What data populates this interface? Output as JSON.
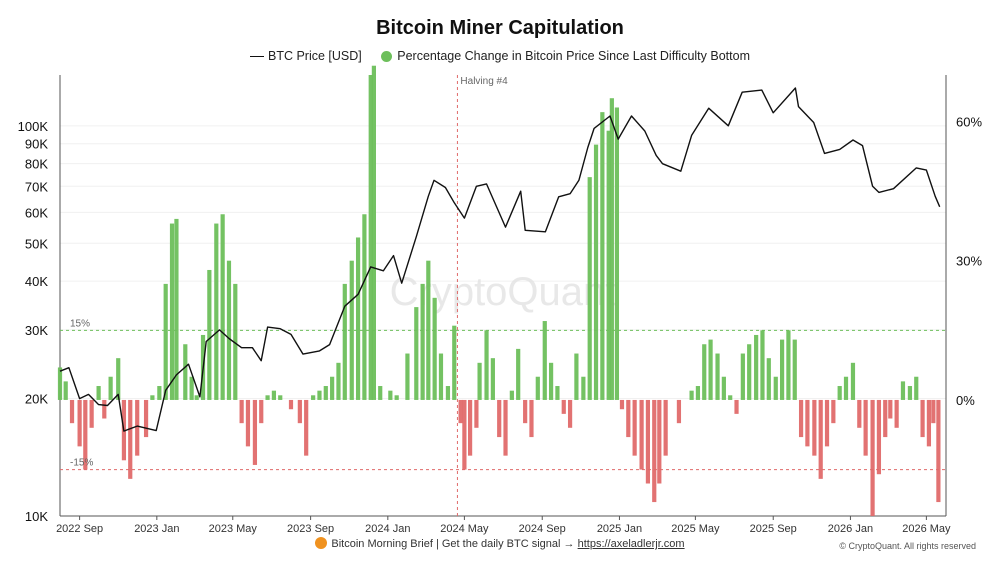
{
  "title": "Bitcoin Miner Capitulation",
  "legend": {
    "price_label": "BTC Price [USD]",
    "pct_label": "Percentage Change in Bitcoin Price Since Last Difficulty Bottom"
  },
  "watermark": "CryptoQuant",
  "footer": {
    "text": "Bitcoin Morning Brief | Get the daily BTC signal →",
    "link": "https://axeladlerjr.com",
    "copyright": "© CryptoQuant. All rights reserved"
  },
  "colors": {
    "price_line": "#111111",
    "positive": "#6dbf5b",
    "negative": "#e06a6a",
    "halving_line": "#e06a6a",
    "threshold_plus": "#6dbf5b",
    "threshold_minus": "#e06a6a"
  },
  "chart_data": {
    "type": "line",
    "x_range": [
      "2022-08-01",
      "2026-06-01"
    ],
    "x_tick_labels": [
      "2022 Sep",
      "2023 Jan",
      "2023 May",
      "2023 Sep",
      "2024 Jan",
      "2024 May",
      "2024 Sep",
      "2025 Jan",
      "2025 May",
      "2025 Sep",
      "2026 Jan",
      "2026 May"
    ],
    "x_tick_dates": [
      "2022-09-01",
      "2023-01-01",
      "2023-05-01",
      "2023-09-01",
      "2024-01-01",
      "2024-05-01",
      "2024-09-01",
      "2025-01-01",
      "2025-05-01",
      "2025-09-01",
      "2026-01-01",
      "2026-05-01"
    ],
    "left_axis": {
      "scale": "log",
      "range": [
        10000,
        135000
      ],
      "ticks": [
        10000,
        20000,
        30000,
        40000,
        50000,
        60000,
        70000,
        80000,
        90000,
        100000
      ],
      "tick_labels": [
        "10K",
        "20K",
        "30K",
        "40K",
        "50K",
        "60K",
        "70K",
        "80K",
        "90K",
        "100K"
      ]
    },
    "right_axis": {
      "scale": "linear",
      "range": [
        -25,
        70
      ],
      "ticks": [
        0,
        30,
        60
      ],
      "tick_labels": [
        "0%",
        "30%",
        "60%"
      ]
    },
    "thresholds": [
      {
        "value": 15,
        "label": "15%"
      },
      {
        "value": -15,
        "label": "-15%"
      }
    ],
    "annotations": [
      {
        "date": "2024-04-20",
        "label": "Halving #4"
      }
    ],
    "series": [
      {
        "name": "BTC Price [USD]",
        "axis": "left",
        "points": [
          [
            "2022-08-01",
            23500
          ],
          [
            "2022-08-15",
            24000
          ],
          [
            "2022-09-01",
            20000
          ],
          [
            "2022-09-15",
            20500
          ],
          [
            "2022-10-01",
            19300
          ],
          [
            "2022-10-15",
            19200
          ],
          [
            "2022-11-01",
            20500
          ],
          [
            "2022-11-10",
            16500
          ],
          [
            "2022-12-01",
            17000
          ],
          [
            "2022-12-31",
            16550
          ],
          [
            "2023-01-15",
            21000
          ],
          [
            "2023-02-01",
            23000
          ],
          [
            "2023-02-20",
            24500
          ],
          [
            "2023-03-10",
            20200
          ],
          [
            "2023-03-20",
            28000
          ],
          [
            "2023-04-10",
            30000
          ],
          [
            "2023-04-25",
            28500
          ],
          [
            "2023-05-15",
            27000
          ],
          [
            "2023-06-01",
            27000
          ],
          [
            "2023-06-15",
            25000
          ],
          [
            "2023-06-25",
            30500
          ],
          [
            "2023-07-15",
            30200
          ],
          [
            "2023-08-01",
            29200
          ],
          [
            "2023-08-20",
            26000
          ],
          [
            "2023-09-15",
            26500
          ],
          [
            "2023-10-01",
            27500
          ],
          [
            "2023-10-25",
            34500
          ],
          [
            "2023-11-15",
            37000
          ],
          [
            "2023-12-05",
            43500
          ],
          [
            "2023-12-25",
            42500
          ],
          [
            "2024-01-10",
            46500
          ],
          [
            "2024-01-23",
            39500
          ],
          [
            "2024-02-15",
            52000
          ],
          [
            "2024-03-05",
            66000
          ],
          [
            "2024-03-14",
            72500
          ],
          [
            "2024-04-01",
            69500
          ],
          [
            "2024-04-15",
            63500
          ],
          [
            "2024-05-01",
            58000
          ],
          [
            "2024-05-20",
            70000
          ],
          [
            "2024-06-05",
            71000
          ],
          [
            "2024-07-05",
            55000
          ],
          [
            "2024-07-29",
            68000
          ],
          [
            "2024-08-05",
            54000
          ],
          [
            "2024-09-06",
            53500
          ],
          [
            "2024-09-27",
            65800
          ],
          [
            "2024-10-15",
            67000
          ],
          [
            "2024-10-29",
            72500
          ],
          [
            "2024-11-12",
            88000
          ],
          [
            "2024-11-22",
            98500
          ],
          [
            "2024-12-17",
            106000
          ],
          [
            "2024-12-30",
            92500
          ],
          [
            "2025-01-20",
            106000
          ],
          [
            "2025-02-10",
            97000
          ],
          [
            "2025-02-28",
            84000
          ],
          [
            "2025-03-10",
            80000
          ],
          [
            "2025-04-08",
            76500
          ],
          [
            "2025-04-25",
            94500
          ],
          [
            "2025-05-22",
            111000
          ],
          [
            "2025-06-22",
            100000
          ],
          [
            "2025-07-14",
            122000
          ],
          [
            "2025-08-14",
            123500
          ],
          [
            "2025-09-01",
            108000
          ],
          [
            "2025-10-06",
            125000
          ],
          [
            "2025-10-11",
            112000
          ],
          [
            "2025-11-04",
            102000
          ],
          [
            "2025-11-21",
            85000
          ],
          [
            "2025-12-15",
            87000
          ],
          [
            "2026-01-05",
            92000
          ],
          [
            "2026-01-20",
            89000
          ],
          [
            "2026-02-05",
            70000
          ],
          [
            "2026-02-15",
            67500
          ],
          [
            "2026-03-10",
            69000
          ],
          [
            "2026-04-15",
            78000
          ],
          [
            "2026-05-01",
            77000
          ],
          [
            "2026-05-15",
            66000
          ],
          [
            "2026-05-22",
            62000
          ]
        ]
      },
      {
        "name": "Percentage Change in Bitcoin Price Since Last Difficulty Bottom",
        "axis": "right",
        "type": "bar",
        "points": [
          [
            "2022-08-01",
            7
          ],
          [
            "2022-08-10",
            4
          ],
          [
            "2022-08-20",
            -5
          ],
          [
            "2022-09-01",
            -10
          ],
          [
            "2022-09-10",
            -15
          ],
          [
            "2022-09-20",
            -6
          ],
          [
            "2022-10-01",
            3
          ],
          [
            "2022-10-10",
            -4
          ],
          [
            "2022-10-20",
            5
          ],
          [
            "2022-11-01",
            9
          ],
          [
            "2022-11-10",
            -13
          ],
          [
            "2022-11-20",
            -17
          ],
          [
            "2022-12-01",
            -12
          ],
          [
            "2022-12-15",
            -8
          ],
          [
            "2022-12-25",
            1
          ],
          [
            "2023-01-05",
            3
          ],
          [
            "2023-01-15",
            25
          ],
          [
            "2023-01-25",
            38
          ],
          [
            "2023-02-01",
            39
          ],
          [
            "2023-02-15",
            12
          ],
          [
            "2023-02-25",
            5
          ],
          [
            "2023-03-05",
            1
          ],
          [
            "2023-03-15",
            14
          ],
          [
            "2023-03-25",
            28
          ],
          [
            "2023-04-05",
            38
          ],
          [
            "2023-04-15",
            40
          ],
          [
            "2023-04-25",
            30
          ],
          [
            "2023-05-05",
            25
          ],
          [
            "2023-05-15",
            -5
          ],
          [
            "2023-05-25",
            -10
          ],
          [
            "2023-06-05",
            -14
          ],
          [
            "2023-06-15",
            -5
          ],
          [
            "2023-06-25",
            1
          ],
          [
            "2023-07-05",
            2
          ],
          [
            "2023-07-15",
            1
          ],
          [
            "2023-08-01",
            -2
          ],
          [
            "2023-08-15",
            -5
          ],
          [
            "2023-08-25",
            -12
          ],
          [
            "2023-09-05",
            1
          ],
          [
            "2023-09-15",
            2
          ],
          [
            "2023-09-25",
            3
          ],
          [
            "2023-10-05",
            5
          ],
          [
            "2023-10-15",
            8
          ],
          [
            "2023-10-25",
            25
          ],
          [
            "2023-11-05",
            30
          ],
          [
            "2023-11-15",
            35
          ],
          [
            "2023-11-25",
            40
          ],
          [
            "2023-12-05",
            70
          ],
          [
            "2023-12-10",
            72
          ],
          [
            "2023-12-20",
            3
          ],
          [
            "2024-01-05",
            2
          ],
          [
            "2024-01-15",
            1
          ],
          [
            "2024-02-01",
            10
          ],
          [
            "2024-02-15",
            20
          ],
          [
            "2024-02-25",
            25
          ],
          [
            "2024-03-05",
            30
          ],
          [
            "2024-03-15",
            22
          ],
          [
            "2024-03-25",
            10
          ],
          [
            "2024-04-05",
            3
          ],
          [
            "2024-04-15",
            16
          ],
          [
            "2024-04-25",
            -5
          ],
          [
            "2024-05-01",
            -15
          ],
          [
            "2024-05-10",
            -12
          ],
          [
            "2024-05-20",
            -6
          ],
          [
            "2024-05-25",
            8
          ],
          [
            "2024-06-05",
            15
          ],
          [
            "2024-06-15",
            9
          ],
          [
            "2024-06-25",
            -8
          ],
          [
            "2024-07-05",
            -12
          ],
          [
            "2024-07-15",
            2
          ],
          [
            "2024-07-25",
            11
          ],
          [
            "2024-08-05",
            -5
          ],
          [
            "2024-08-15",
            -8
          ],
          [
            "2024-08-25",
            5
          ],
          [
            "2024-09-05",
            17
          ],
          [
            "2024-09-15",
            8
          ],
          [
            "2024-09-25",
            3
          ],
          [
            "2024-10-05",
            -3
          ],
          [
            "2024-10-15",
            -6
          ],
          [
            "2024-10-25",
            10
          ],
          [
            "2024-11-05",
            5
          ],
          [
            "2024-11-15",
            48
          ],
          [
            "2024-11-25",
            55
          ],
          [
            "2024-12-05",
            62
          ],
          [
            "2024-12-15",
            58
          ],
          [
            "2024-12-20",
            65
          ],
          [
            "2024-12-28",
            63
          ],
          [
            "2025-01-05",
            -2
          ],
          [
            "2025-01-15",
            -8
          ],
          [
            "2025-01-25",
            -12
          ],
          [
            "2025-02-05",
            -15
          ],
          [
            "2025-02-15",
            -18
          ],
          [
            "2025-02-25",
            -22
          ],
          [
            "2025-03-05",
            -18
          ],
          [
            "2025-03-15",
            -12
          ],
          [
            "2025-04-05",
            -5
          ],
          [
            "2025-04-25",
            2
          ],
          [
            "2025-05-05",
            3
          ],
          [
            "2025-05-15",
            12
          ],
          [
            "2025-05-25",
            13
          ],
          [
            "2025-06-05",
            10
          ],
          [
            "2025-06-15",
            5
          ],
          [
            "2025-06-25",
            1
          ],
          [
            "2025-07-05",
            -3
          ],
          [
            "2025-07-15",
            10
          ],
          [
            "2025-07-25",
            12
          ],
          [
            "2025-08-05",
            14
          ],
          [
            "2025-08-15",
            15
          ],
          [
            "2025-08-25",
            9
          ],
          [
            "2025-09-05",
            5
          ],
          [
            "2025-09-15",
            13
          ],
          [
            "2025-09-25",
            15
          ],
          [
            "2025-10-05",
            13
          ],
          [
            "2025-10-15",
            -8
          ],
          [
            "2025-10-25",
            -10
          ],
          [
            "2025-11-05",
            -12
          ],
          [
            "2025-11-15",
            -17
          ],
          [
            "2025-11-25",
            -10
          ],
          [
            "2025-12-05",
            -5
          ],
          [
            "2025-12-15",
            3
          ],
          [
            "2025-12-25",
            5
          ],
          [
            "2026-01-05",
            8
          ],
          [
            "2026-01-15",
            -6
          ],
          [
            "2026-01-25",
            -12
          ],
          [
            "2026-02-05",
            -25
          ],
          [
            "2026-02-15",
            -16
          ],
          [
            "2026-02-25",
            -8
          ],
          [
            "2026-03-05",
            -4
          ],
          [
            "2026-03-15",
            -6
          ],
          [
            "2026-03-25",
            4
          ],
          [
            "2026-04-05",
            3
          ],
          [
            "2026-04-15",
            5
          ],
          [
            "2026-04-25",
            -8
          ],
          [
            "2026-05-05",
            -10
          ],
          [
            "2026-05-12",
            -5
          ],
          [
            "2026-05-20",
            -22
          ]
        ]
      }
    ]
  }
}
